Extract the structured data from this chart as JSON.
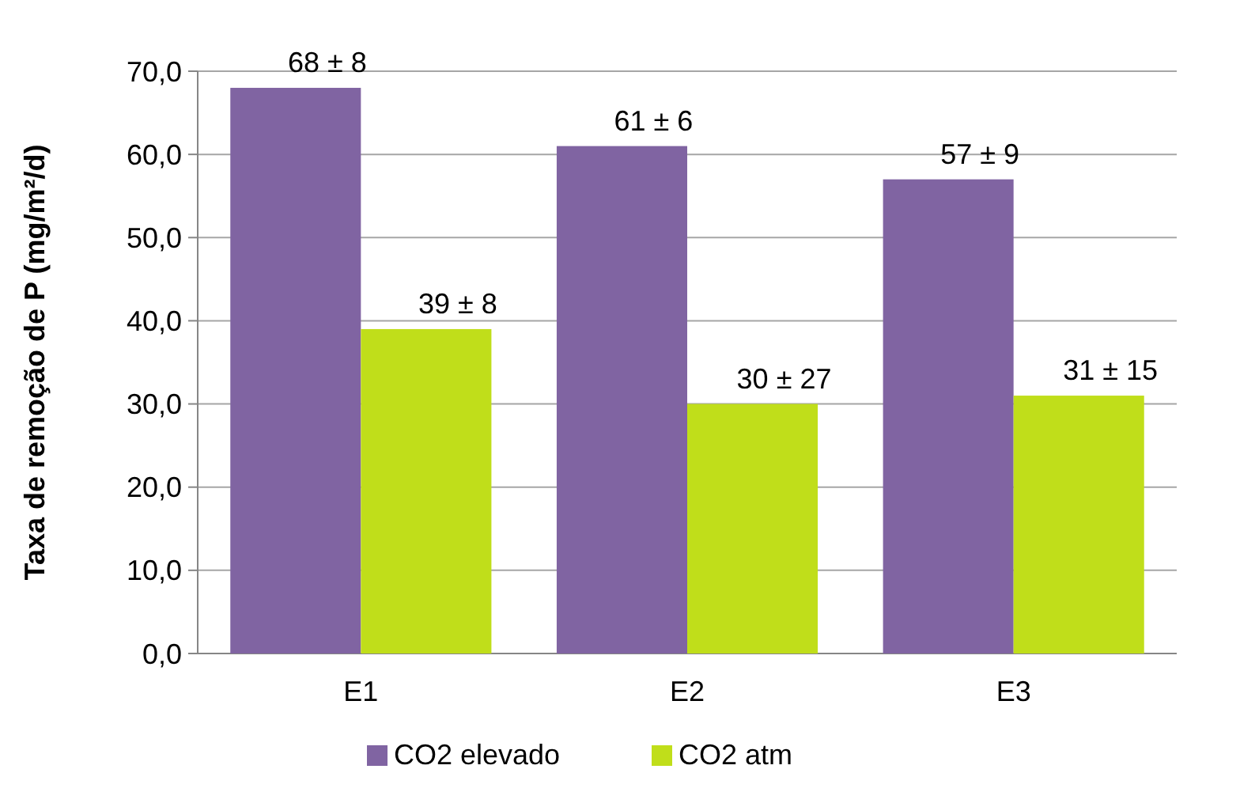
{
  "chart_data": {
    "type": "bar",
    "ylabel": "Taxa de remoção de P (mg/m²/d)",
    "categories": [
      "E1",
      "E2",
      "E3"
    ],
    "series": [
      {
        "name": "CO2 elevado",
        "color": "#8064a2",
        "values": [
          68,
          61,
          57
        ],
        "value_labels": [
          "68 ± 8",
          "61 ± 6",
          "57 ± 9"
        ]
      },
      {
        "name": "CO2 atm",
        "color": "#c0de1a",
        "values": [
          39,
          30,
          31
        ],
        "value_labels": [
          "39 ± 8",
          "30 ± 27",
          "31 ± 15"
        ]
      }
    ],
    "ylim": [
      0,
      70
    ],
    "yticks": [
      {
        "value": 0,
        "label": "0,0"
      },
      {
        "value": 10,
        "label": "10,0"
      },
      {
        "value": 20,
        "label": "20,0"
      },
      {
        "value": 30,
        "label": "30,0"
      },
      {
        "value": 40,
        "label": "40,0"
      },
      {
        "value": 50,
        "label": "50,0"
      },
      {
        "value": 60,
        "label": "60,0"
      },
      {
        "value": 70,
        "label": "70,0"
      }
    ],
    "grid": "y",
    "legend": "bottom"
  }
}
